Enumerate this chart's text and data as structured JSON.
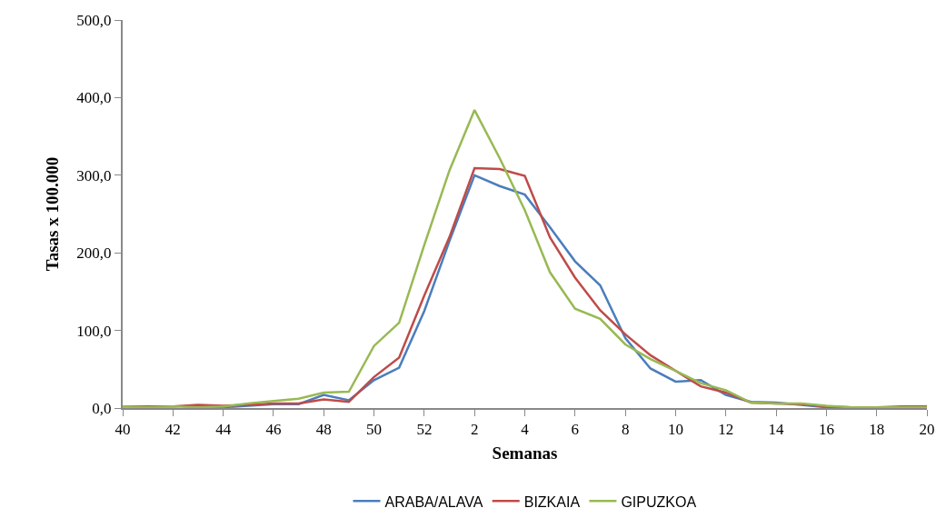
{
  "chart_data": {
    "type": "line",
    "xlabel": "Semanas",
    "ylabel": "Tasas x 100.000",
    "categories": [
      "40",
      null,
      "42",
      null,
      "44",
      null,
      "46",
      null,
      "48",
      null,
      "50",
      null,
      "52",
      null,
      "2",
      null,
      "4",
      null,
      "6",
      null,
      "8",
      null,
      "10",
      null,
      "12",
      null,
      "14",
      null,
      "16",
      null,
      "18",
      null,
      "20"
    ],
    "series": [
      {
        "name": "ARABA/ALAVA",
        "color": "#4a7ebb",
        "values": [
          null,
          null,
          null,
          0,
          1,
          3,
          5,
          5,
          17,
          10,
          36,
          52,
          125,
          215,
          300,
          286,
          275,
          233,
          189,
          158,
          90,
          51,
          34,
          36,
          17,
          8,
          7,
          4,
          1,
          1,
          null,
          null,
          null
        ]
      },
      {
        "name": "BIZKAIA",
        "color": "#be4b48",
        "values": [
          2,
          2,
          2,
          4,
          3,
          4,
          6,
          6,
          11,
          8,
          40,
          65,
          145,
          220,
          309,
          308,
          299,
          220,
          168,
          126,
          95,
          68,
          48,
          28,
          20,
          7,
          6,
          5,
          2,
          1,
          1,
          2,
          2
        ]
      },
      {
        "name": "GIPUZKOA",
        "color": "#98b954",
        "values": [
          2,
          1,
          2,
          1,
          2,
          6,
          9,
          12,
          20,
          21,
          80,
          110,
          210,
          306,
          384,
          322,
          255,
          175,
          128,
          115,
          82,
          63,
          48,
          32,
          23,
          7,
          6,
          6,
          3,
          1,
          1,
          1,
          1
        ]
      }
    ],
    "ylim": [
      0,
      500
    ],
    "yticks": [
      {
        "value": 0,
        "label": "0,0"
      },
      {
        "value": 100,
        "label": "100,0"
      },
      {
        "value": 200,
        "label": "200,0"
      },
      {
        "value": 300,
        "label": "300,0"
      },
      {
        "value": 400,
        "label": "400,0"
      },
      {
        "value": 500,
        "label": "500,0"
      }
    ],
    "grid": false,
    "legend": "bottom",
    "marker": "none",
    "line_style": "solid"
  }
}
